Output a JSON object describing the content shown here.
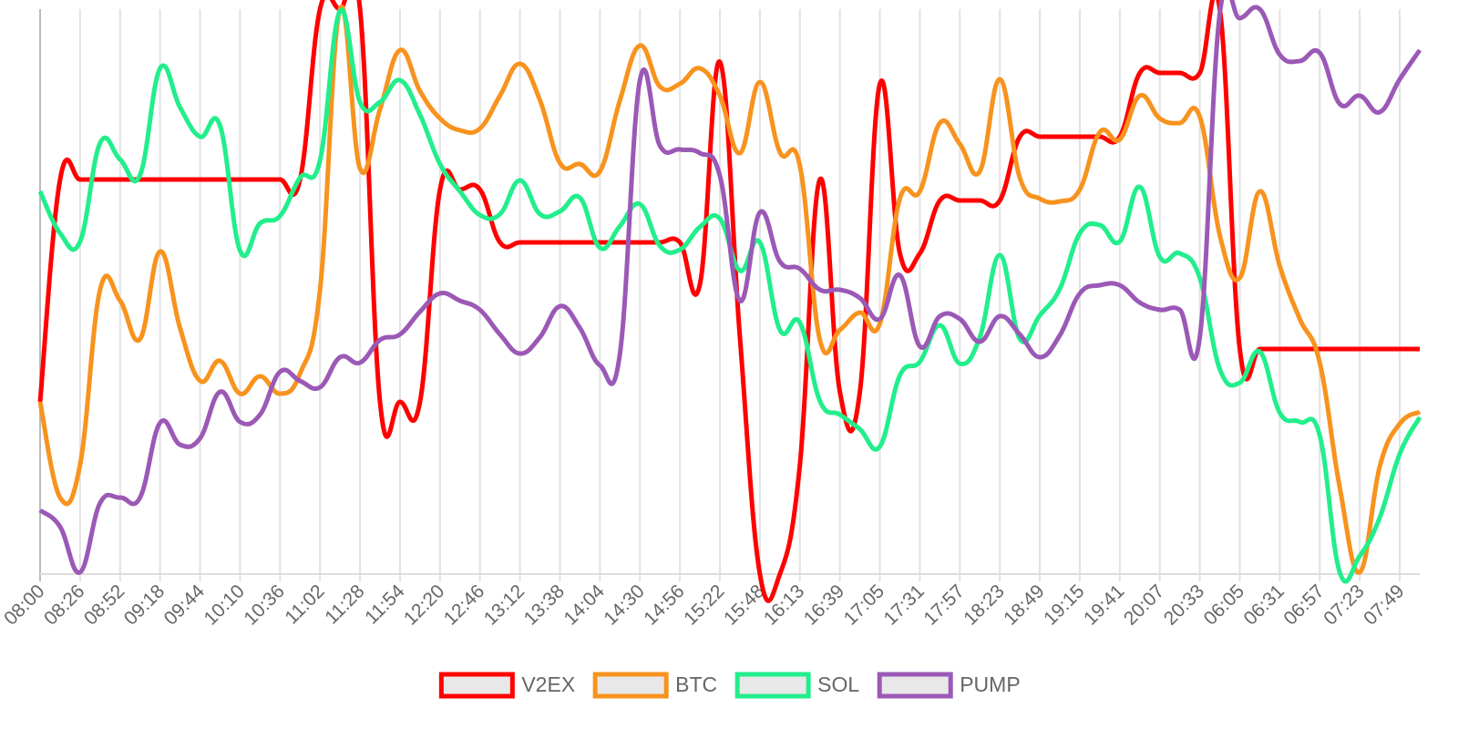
{
  "chart_data": {
    "type": "line",
    "grid": true,
    "legend": "bottom",
    "categories": [
      "08:00",
      null,
      "08:26",
      null,
      "08:52",
      null,
      "09:18",
      null,
      "09:44",
      null,
      "10:10",
      null,
      "10:36",
      null,
      "11:02",
      null,
      "11:28",
      null,
      "11:54",
      null,
      "12:20",
      null,
      "12:46",
      null,
      "13:12",
      null,
      "13:38",
      null,
      "14:04",
      null,
      "14:30",
      null,
      "14:56",
      null,
      "15:22",
      null,
      "15:48",
      null,
      "16:13",
      null,
      "16:39",
      null,
      "17:05",
      null,
      "17:31",
      null,
      "17:57",
      null,
      "18:23",
      null,
      "18:49",
      null,
      "19:15",
      null,
      "19:41",
      null,
      "20:07",
      null,
      "20:33",
      null,
      "06:05",
      null,
      "06:31",
      null,
      "06:57",
      null,
      "07:23",
      null,
      "07:49",
      null
    ],
    "ylim": [
      0,
      620
    ],
    "series": [
      {
        "name": "V2EX",
        "color": "#ff0000",
        "values": [
          189,
          433,
          433,
          433,
          433,
          433,
          433,
          433,
          433,
          433,
          433,
          433,
          433,
          433,
          620,
          620,
          620,
          189,
          189,
          189,
          422,
          422,
          422,
          364,
          364,
          364,
          364,
          364,
          364,
          364,
          364,
          364,
          364,
          318,
          562,
          260,
          0,
          0,
          120,
          433,
          200,
          200,
          538,
          352,
          352,
          410,
          410,
          410,
          410,
          480,
          480,
          480,
          480,
          480,
          480,
          550,
          550,
          550,
          550,
          620,
          247,
          247,
          247,
          247,
          247,
          247,
          247,
          247,
          247,
          247
        ]
      },
      {
        "name": "BTC",
        "color": "#f7931e",
        "values": [
          189,
          84,
          120,
          312,
          300,
          258,
          354,
          270,
          212,
          234,
          198,
          217,
          198,
          220,
          312,
          620,
          445,
          510,
          575,
          530,
          500,
          487,
          489,
          525,
          560,
          520,
          451,
          450,
          442,
          520,
          580,
          535,
          538,
          555,
          525,
          462,
          540,
          463,
          448,
          257,
          268,
          287,
          275,
          412,
          420,
          495,
          472,
          442,
          543,
          435,
          412,
          409,
          422,
          485,
          477,
          525,
          500,
          495,
          502,
          372,
          325,
          420,
          338,
          280,
          232,
          95,
          2,
          118,
          165,
          178
        ]
      },
      {
        "name": "SOL",
        "color": "#22ee8c",
        "values": [
          420,
          374,
          365,
          473,
          455,
          438,
          555,
          512,
          480,
          492,
          355,
          385,
          393,
          435,
          454,
          618,
          518,
          518,
          542,
          504,
          450,
          420,
          394,
          395,
          432,
          395,
          398,
          413,
          358,
          382,
          406,
          360,
          356,
          381,
          390,
          333,
          364,
          268,
          276,
          190,
          175,
          159,
          140,
          218,
          233,
          273,
          231,
          260,
          350,
          258,
          284,
          313,
          374,
          383,
          365,
          425,
          348,
          352,
          325,
          225,
          210,
          244,
          177,
          167,
          152,
          2,
          20,
          62,
          132,
          172
        ]
      },
      {
        "name": "PUMP",
        "color": "#9b59b6",
        "values": [
          70,
          52,
          2,
          78,
          84,
          84,
          166,
          142,
          149,
          200,
          167,
          175,
          222,
          212,
          205,
          238,
          232,
          257,
          263,
          288,
          308,
          300,
          290,
          263,
          242,
          260,
          294,
          270,
          229,
          242,
          542,
          470,
          466,
          462,
          437,
          300,
          397,
          343,
          335,
          312,
          312,
          303,
          280,
          328,
          250,
          283,
          280,
          255,
          283,
          263,
          238,
          262,
          308,
          317,
          317,
          298,
          290,
          290,
          260,
          615,
          610,
          620,
          570,
          563,
          572,
          516,
          525,
          507,
          543,
          575
        ]
      }
    ]
  }
}
